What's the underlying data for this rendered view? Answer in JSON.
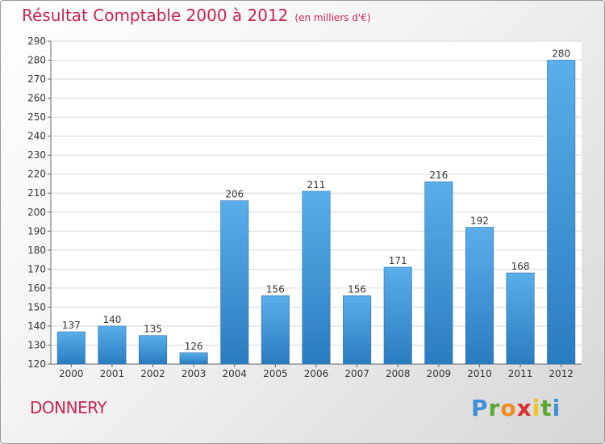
{
  "chart_data": {
    "type": "bar",
    "title": "Résultat Comptable 2000 à 2012",
    "subtitle": "(en milliers d'€)",
    "categories": [
      "2000",
      "2001",
      "2002",
      "2003",
      "2004",
      "2005",
      "2006",
      "2007",
      "2008",
      "2009",
      "2010",
      "2011",
      "2012"
    ],
    "values": [
      137,
      140,
      135,
      126,
      206,
      156,
      211,
      156,
      171,
      216,
      192,
      168,
      280
    ],
    "ylim": [
      120,
      290
    ],
    "yticks": [
      120,
      130,
      140,
      150,
      160,
      170,
      180,
      190,
      200,
      210,
      220,
      230,
      240,
      250,
      260,
      270,
      280,
      290
    ],
    "grid": true,
    "xlabel": "",
    "ylabel": "",
    "bar_color": "#3d94d8"
  },
  "location": {
    "name": "DONNERY"
  },
  "logo": {
    "text": "Proxiti",
    "letter_colors": [
      "#3e8fd9",
      "#5aa832",
      "#f08a1e",
      "#d83030",
      "#f0c419",
      "#5aa832",
      "#3e8fd9"
    ]
  },
  "colors": {
    "title": "#c8264f",
    "grid": "#d6d6d6",
    "axis": "#666666"
  }
}
